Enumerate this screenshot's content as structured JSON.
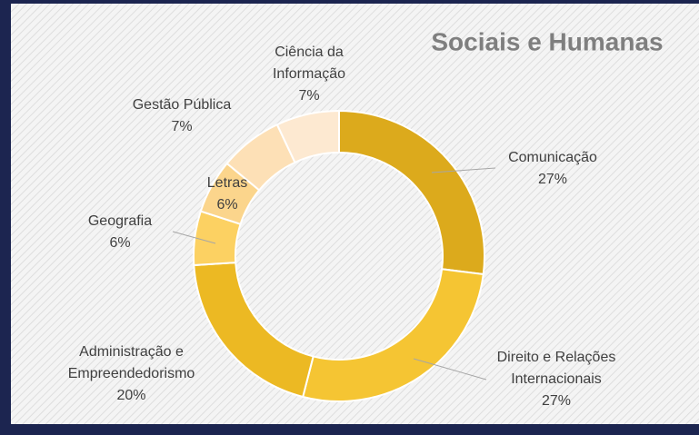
{
  "chart_data": {
    "type": "donut",
    "title": "Sociais e Humanas",
    "categories": [
      "Comunicação",
      "Direito e Relações Internacionais",
      "Administração e Empreendedorismo",
      "Geografia",
      "Letras",
      "Gestão Pública",
      "Ciência da Informação"
    ],
    "values": [
      27,
      27,
      20,
      6,
      6,
      7,
      7
    ],
    "value_labels": [
      "27%",
      "27%",
      "20%",
      "6%",
      "6%",
      "7%",
      "7%"
    ],
    "colors": [
      "#dcaa1c",
      "#f5c533",
      "#ecb923",
      "#fcd162",
      "#fbd58c",
      "#fde0b6",
      "#fde9d1"
    ]
  }
}
